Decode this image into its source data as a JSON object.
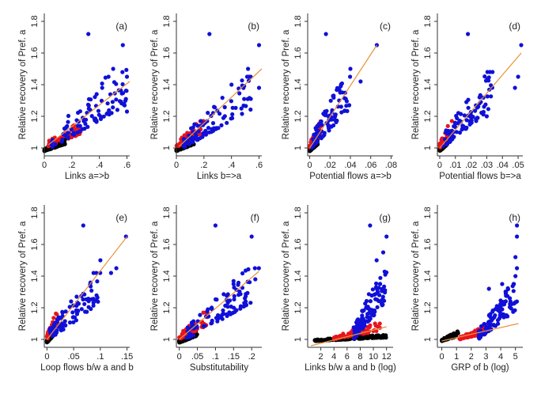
{
  "colors": {
    "background": "#ffffff",
    "group_black": "#000000",
    "group_red": "#e8141c",
    "group_blue": "#1010d8",
    "fit_line": "#e8923c"
  },
  "chart_data": [
    {
      "type": "scatter",
      "label": "(a)",
      "xlabel": "Links a=>b",
      "ylabel": "Relative recovery of Pref. a",
      "xlim": [
        0,
        0.62
      ],
      "ylim": [
        0.95,
        1.85
      ],
      "xticks": [
        0,
        0.2,
        0.4,
        0.6
      ],
      "xtick_labels": [
        "0",
        ".2",
        ".4",
        ".6"
      ],
      "yticks": [
        1,
        1.2,
        1.4,
        1.6,
        1.8
      ],
      "ytick_labels": [
        "1",
        "1.2",
        "1.4",
        "1.6",
        "1.8"
      ],
      "fit": {
        "x0": 0.03,
        "y0": 1.02,
        "x1": 0.62,
        "y1": 1.42
      },
      "groups": {
        "black": {
          "xrange": [
            0,
            0.15
          ],
          "yrange": [
            0.98,
            1.06
          ],
          "n": 110
        },
        "red": {
          "xrange": [
            0,
            0.28
          ],
          "yrange": [
            1.0,
            1.17
          ],
          "n": 45
        },
        "blue": {
          "xrange": [
            0.05,
            0.6
          ],
          "yrange": [
            1.0,
            1.5
          ],
          "n": 95
        }
      },
      "blue_outliers": [
        [
          0.32,
          1.72
        ],
        [
          0.57,
          1.65
        ],
        [
          0.6,
          1.45
        ],
        [
          0.5,
          1.5
        ],
        [
          0.42,
          1.38
        ],
        [
          0.6,
          1.23
        ]
      ]
    },
    {
      "type": "scatter",
      "label": "(b)",
      "xlabel": "Links b=>a",
      "ylabel": "Relative recovery of Pref. a",
      "xlim": [
        0,
        0.62
      ],
      "ylim": [
        0.95,
        1.85
      ],
      "xticks": [
        0,
        0.2,
        0.4,
        0.6
      ],
      "xtick_labels": [
        "0",
        ".2",
        ".4",
        ".6"
      ],
      "yticks": [
        1,
        1.2,
        1.4,
        1.6,
        1.8
      ],
      "ytick_labels": [
        "1",
        "1.2",
        "1.4",
        "1.6",
        "1.8"
      ],
      "fit": {
        "x0": 0.02,
        "y0": 1.01,
        "x1": 0.62,
        "y1": 1.5
      },
      "groups": {
        "black": {
          "xrange": [
            0,
            0.13
          ],
          "yrange": [
            0.98,
            1.06
          ],
          "n": 110
        },
        "red": {
          "xrange": [
            0,
            0.2
          ],
          "yrange": [
            1.0,
            1.17
          ],
          "n": 45
        },
        "blue": {
          "xrange": [
            0.05,
            0.55
          ],
          "yrange": [
            1.0,
            1.45
          ],
          "n": 95
        }
      },
      "blue_outliers": [
        [
          0.24,
          1.72
        ],
        [
          0.6,
          1.65
        ],
        [
          0.52,
          1.5
        ],
        [
          0.6,
          1.38
        ],
        [
          0.4,
          1.4
        ]
      ]
    },
    {
      "type": "scatter",
      "label": "(c)",
      "xlabel": "Potential flows a=>b",
      "ylabel": "Relative recovery of Pref. a",
      "xlim": [
        -0.002,
        0.082
      ],
      "ylim": [
        0.95,
        1.85
      ],
      "xticks": [
        0,
        0.02,
        0.04,
        0.06,
        0.08
      ],
      "xtick_labels": [
        "0",
        ".02",
        ".04",
        ".06",
        ".08"
      ],
      "yticks": [
        1,
        1.2,
        1.4,
        1.6,
        1.8
      ],
      "ytick_labels": [
        "1",
        "1.2",
        "1.4",
        "1.6",
        "1.8"
      ],
      "fit": {
        "x0": 0.0,
        "y0": 1.0,
        "x1": 0.066,
        "y1": 1.65
      },
      "groups": {
        "black": {
          "xrange": [
            0,
            0.008
          ],
          "yrange": [
            0.98,
            1.06
          ],
          "n": 110
        },
        "red": {
          "xrange": [
            0,
            0.012
          ],
          "yrange": [
            1.0,
            1.17
          ],
          "n": 45
        },
        "blue": {
          "xrange": [
            0.002,
            0.04
          ],
          "yrange": [
            1.0,
            1.45
          ],
          "n": 95
        }
      },
      "blue_outliers": [
        [
          0.016,
          1.72
        ],
        [
          0.066,
          1.65
        ],
        [
          0.05,
          1.42
        ],
        [
          0.04,
          1.5
        ],
        [
          0.03,
          1.35
        ]
      ]
    },
    {
      "type": "scatter",
      "label": "(d)",
      "xlabel": "Potential flows b=>a",
      "ylabel": "Relative recovery of Pref. a",
      "xlim": [
        -0.0015,
        0.053
      ],
      "ylim": [
        0.95,
        1.85
      ],
      "xticks": [
        0,
        0.01,
        0.02,
        0.03,
        0.04,
        0.05
      ],
      "xtick_labels": [
        "0",
        ".01",
        ".02",
        ".03",
        ".04",
        ".05"
      ],
      "yticks": [
        1,
        1.2,
        1.4,
        1.6,
        1.8
      ],
      "ytick_labels": [
        "1",
        "1.2",
        "1.4",
        "1.6",
        "1.8"
      ],
      "fit": {
        "x0": 0.0,
        "y0": 1.0,
        "x1": 0.052,
        "y1": 1.6
      },
      "groups": {
        "black": {
          "xrange": [
            0,
            0.005
          ],
          "yrange": [
            0.98,
            1.06
          ],
          "n": 110
        },
        "red": {
          "xrange": [
            0,
            0.008
          ],
          "yrange": [
            1.0,
            1.17
          ],
          "n": 45
        },
        "blue": {
          "xrange": [
            0.002,
            0.035
          ],
          "yrange": [
            1.0,
            1.48
          ],
          "n": 95
        }
      },
      "blue_outliers": [
        [
          0.018,
          1.72
        ],
        [
          0.052,
          1.65
        ],
        [
          0.05,
          1.45
        ],
        [
          0.048,
          1.38
        ],
        [
          0.03,
          1.2
        ]
      ]
    },
    {
      "type": "scatter",
      "label": "(e)",
      "xlabel": "Loop flows b/w a and b",
      "ylabel": "Relative recovery of Pref. a",
      "xlim": [
        -0.005,
        0.155
      ],
      "ylim": [
        0.95,
        1.85
      ],
      "xticks": [
        0,
        0.05,
        0.1,
        0.15
      ],
      "xtick_labels": [
        "0",
        ".05",
        ".1",
        ".15"
      ],
      "yticks": [
        1,
        1.2,
        1.4,
        1.6,
        1.8
      ],
      "ytick_labels": [
        "1",
        "1.2",
        "1.4",
        "1.6",
        "1.8"
      ],
      "fit": {
        "x0": 0.0,
        "y0": 1.0,
        "x1": 0.15,
        "y1": 1.65
      },
      "groups": {
        "black": {
          "xrange": [
            0,
            0.012
          ],
          "yrange": [
            0.98,
            1.06
          ],
          "n": 110
        },
        "red": {
          "xrange": [
            0,
            0.02
          ],
          "yrange": [
            1.0,
            1.17
          ],
          "n": 45
        },
        "blue": {
          "xrange": [
            0.005,
            0.1
          ],
          "yrange": [
            1.0,
            1.42
          ],
          "n": 95
        }
      },
      "blue_outliers": [
        [
          0.068,
          1.72
        ],
        [
          0.148,
          1.65
        ],
        [
          0.13,
          1.45
        ],
        [
          0.1,
          1.5
        ],
        [
          0.12,
          1.42
        ]
      ]
    },
    {
      "type": "scatter",
      "label": "(f)",
      "xlabel": "Substitutability",
      "ylabel": "Relative recovery of Pref. a",
      "xlim": [
        -0.008,
        0.228
      ],
      "ylim": [
        0.95,
        1.85
      ],
      "xticks": [
        0,
        0.05,
        0.1,
        0.15,
        0.2
      ],
      "xtick_labels": [
        "0",
        ".05",
        ".1",
        ".15",
        ".2"
      ],
      "yticks": [
        1,
        1.2,
        1.4,
        1.6,
        1.8
      ],
      "ytick_labels": [
        "1",
        "1.2",
        "1.4",
        "1.6",
        "1.8"
      ],
      "fit": {
        "x0": 0.0,
        "y0": 1.0,
        "x1": 0.22,
        "y1": 1.43
      },
      "groups": {
        "black": {
          "xrange": [
            0,
            0.05
          ],
          "yrange": [
            0.98,
            1.06
          ],
          "n": 110
        },
        "red": {
          "xrange": [
            0,
            0.08
          ],
          "yrange": [
            1.0,
            1.17
          ],
          "n": 45
        },
        "blue": {
          "xrange": [
            0.02,
            0.21
          ],
          "yrange": [
            1.0,
            1.45
          ],
          "n": 95
        }
      },
      "blue_outliers": [
        [
          0.1,
          1.72
        ],
        [
          0.2,
          1.65
        ],
        [
          0.22,
          1.45
        ],
        [
          0.21,
          1.38
        ],
        [
          0.15,
          1.35
        ]
      ]
    },
    {
      "type": "scatter",
      "label": "(g)",
      "xlabel": "Links b/w a and b (log)",
      "ylabel": "Relative recovery of Pref. a",
      "xlim": [
        0,
        13
      ],
      "ylim": [
        0.95,
        1.85
      ],
      "xticks": [
        2,
        4,
        6,
        8,
        10,
        12
      ],
      "xtick_labels": [
        "2",
        "4",
        "6",
        "8",
        "10",
        "12"
      ],
      "yticks": [
        1,
        1.2,
        1.4,
        1.6,
        1.8
      ],
      "ytick_labels": [
        "1",
        "1.2",
        "1.4",
        "1.6",
        "1.8"
      ],
      "fit": {
        "x0": 0.5,
        "y0": 0.96,
        "x1": 12,
        "y1": 1.08
      },
      "groups": {
        "black": {
          "xrange": [
            1,
            12
          ],
          "yrange": [
            0.99,
            1.03
          ],
          "n": 140
        },
        "red": {
          "xrange": [
            4,
            11
          ],
          "yrange": [
            1.0,
            1.1
          ],
          "n": 60
        },
        "blue": {
          "xrange": [
            7,
            12
          ],
          "yrange": [
            1.0,
            1.45
          ],
          "n": 110
        }
      },
      "blue_outliers": [
        [
          9.5,
          1.72
        ],
        [
          12,
          1.65
        ],
        [
          11.5,
          1.55
        ],
        [
          10.5,
          1.5
        ],
        [
          11,
          1.35
        ]
      ]
    },
    {
      "type": "scatter",
      "label": "(h)",
      "xlabel": "GRP of b (log)",
      "ylabel": "Relative recovery of Pref. a",
      "xlim": [
        -0.3,
        5.5
      ],
      "ylim": [
        0.95,
        1.85
      ],
      "xticks": [
        0,
        1,
        2,
        3,
        4,
        5
      ],
      "xtick_labels": [
        "0",
        "1",
        "2",
        "3",
        "4",
        "5"
      ],
      "yticks": [
        1,
        1.2,
        1.4,
        1.6,
        1.8
      ],
      "ytick_labels": [
        "1",
        "1.2",
        "1.4",
        "1.6",
        "1.8"
      ],
      "fit": {
        "x0": 0,
        "y0": 0.99,
        "x1": 5.2,
        "y1": 1.1
      },
      "groups": {
        "black": {
          "xrange": [
            0,
            1.2
          ],
          "yrange": [
            0.99,
            1.05
          ],
          "n": 60
        },
        "red": {
          "xrange": [
            1.2,
            3.2
          ],
          "yrange": [
            1.0,
            1.08
          ],
          "n": 90
        },
        "blue": {
          "xrange": [
            2.5,
            5.1
          ],
          "yrange": [
            1.0,
            1.35
          ],
          "n": 110
        }
      },
      "blue_outliers": [
        [
          5.1,
          1.72
        ],
        [
          5.1,
          1.65
        ],
        [
          5.0,
          1.52
        ],
        [
          5.1,
          1.45
        ],
        [
          5.0,
          1.4
        ],
        [
          4.1,
          1.35
        ],
        [
          3.2,
          1.32
        ]
      ]
    }
  ]
}
